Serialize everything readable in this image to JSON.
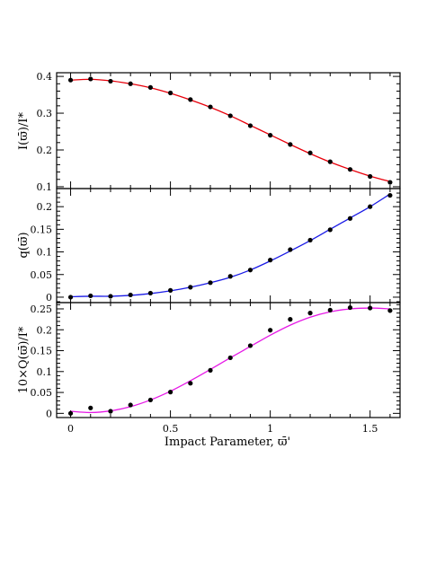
{
  "chart_data": [
    {
      "type": "scatter",
      "panel": "top",
      "ylabel": "I(ϖ̄)/I*",
      "ylim": [
        0.095,
        0.41
      ],
      "xlim": [
        -0.07,
        1.65
      ],
      "yticks": [
        0.1,
        0.2,
        0.3,
        0.4
      ],
      "ytick_labels": [
        "0.1",
        "0.2",
        "0.3",
        "0.4"
      ],
      "line_color": "#e8000b",
      "points_color": "#000000",
      "x": [
        0.0,
        0.1,
        0.2,
        0.3,
        0.4,
        0.5,
        0.6,
        0.7,
        0.8,
        0.9,
        1.0,
        1.1,
        1.2,
        1.3,
        1.4,
        1.5,
        1.6
      ],
      "points": [
        0.39,
        0.393,
        0.387,
        0.38,
        0.37,
        0.355,
        0.337,
        0.317,
        0.293,
        0.266,
        0.24,
        0.215,
        0.192,
        0.168,
        0.147,
        0.128,
        0.112
      ],
      "curve": [
        0.39,
        0.392,
        0.388,
        0.38,
        0.369,
        0.354,
        0.336,
        0.316,
        0.293,
        0.267,
        0.241,
        0.215,
        0.19,
        0.167,
        0.147,
        0.129,
        0.114
      ]
    },
    {
      "type": "scatter",
      "panel": "middle",
      "ylabel": "q(ϖ̄)",
      "ylim": [
        -0.012,
        0.24
      ],
      "xlim": [
        -0.07,
        1.65
      ],
      "yticks": [
        0,
        0.05,
        0.1,
        0.15,
        0.2
      ],
      "ytick_labels": [
        "0",
        "0.05",
        "0.1",
        "0.15",
        "0.2"
      ],
      "line_color": "#1a1ae6",
      "points_color": "#000000",
      "x": [
        0.0,
        0.1,
        0.2,
        0.3,
        0.4,
        0.5,
        0.6,
        0.7,
        0.8,
        0.9,
        1.0,
        1.1,
        1.2,
        1.3,
        1.4,
        1.5,
        1.6
      ],
      "points": [
        0.0,
        0.003,
        0.002,
        0.005,
        0.009,
        0.015,
        0.022,
        0.032,
        0.046,
        0.06,
        0.082,
        0.105,
        0.126,
        0.149,
        0.174,
        0.2,
        0.225
      ],
      "curve": [
        0.001,
        0.002,
        0.002,
        0.004,
        0.008,
        0.014,
        0.022,
        0.032,
        0.044,
        0.06,
        0.08,
        0.102,
        0.125,
        0.15,
        0.175,
        0.2,
        0.228
      ]
    },
    {
      "type": "scatter",
      "panel": "bottom",
      "ylabel": "10×Q(ϖ̄)/I*",
      "xlabel": "Impact Parameter, ϖ̄'",
      "ylim": [
        -0.01,
        0.265
      ],
      "xlim": [
        -0.07,
        1.65
      ],
      "yticks": [
        0,
        0.05,
        0.1,
        0.15,
        0.2,
        0.25
      ],
      "ytick_labels": [
        "0",
        "0.05",
        "0.1",
        "0.15",
        "0.2",
        "0.25"
      ],
      "xticks": [
        0,
        0.5,
        1,
        1.5
      ],
      "xtick_labels": [
        "0",
        "0.5",
        "1",
        "1.5"
      ],
      "line_color": "#e619e6",
      "points_color": "#000000",
      "x": [
        0.0,
        0.1,
        0.2,
        0.3,
        0.4,
        0.5,
        0.6,
        0.7,
        0.8,
        0.9,
        1.0,
        1.1,
        1.2,
        1.3,
        1.4,
        1.5,
        1.6
      ],
      "points": [
        0.0,
        0.013,
        0.005,
        0.02,
        0.032,
        0.051,
        0.072,
        0.103,
        0.133,
        0.162,
        0.199,
        0.225,
        0.24,
        0.247,
        0.253,
        0.252,
        0.246
      ],
      "curve": [
        0.005,
        0.002,
        0.006,
        0.016,
        0.032,
        0.053,
        0.078,
        0.105,
        0.133,
        0.16,
        0.187,
        0.211,
        0.23,
        0.243,
        0.25,
        0.252,
        0.25
      ]
    }
  ]
}
